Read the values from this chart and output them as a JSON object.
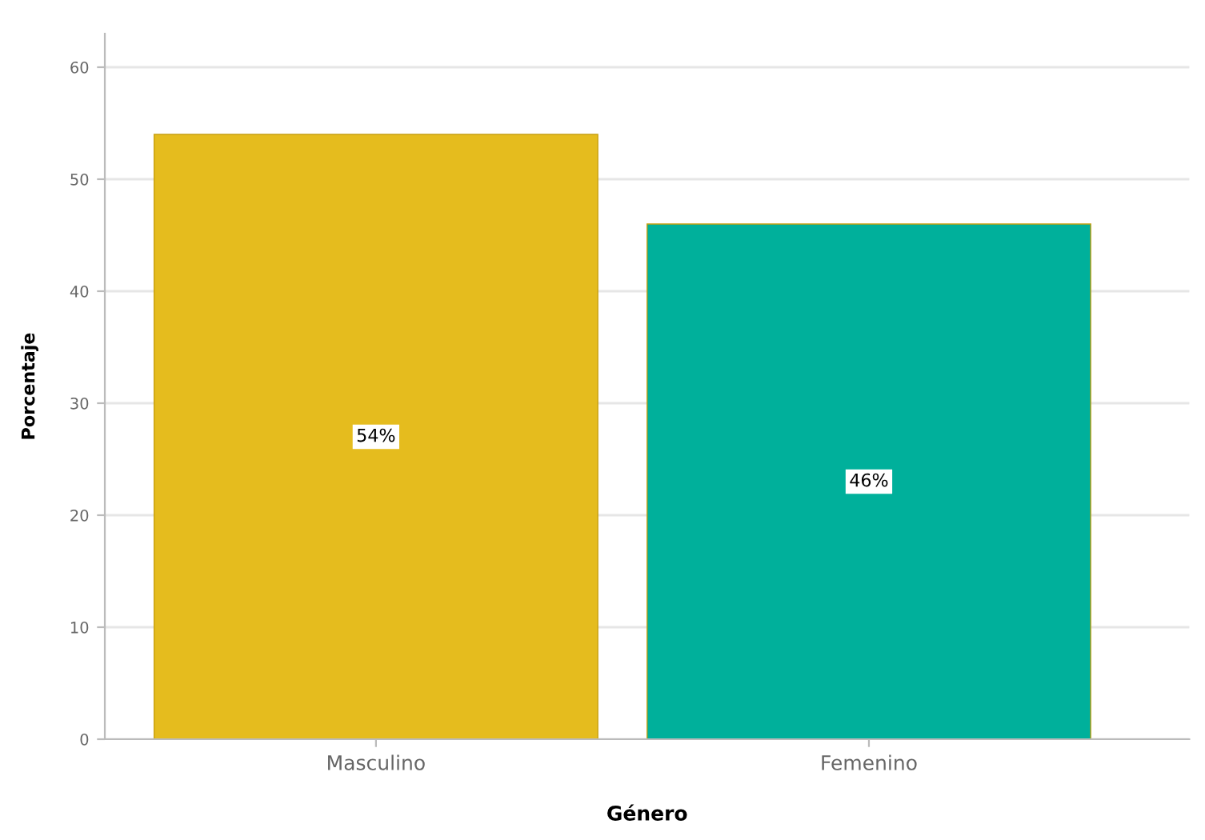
{
  "chart_data": {
    "type": "bar",
    "xlabel": "Género",
    "ylabel": "Porcentaje",
    "categories": [
      "Masculino",
      "Femenino"
    ],
    "values": [
      54,
      46
    ],
    "colors": [
      "#e5bc1e",
      "#00b09b"
    ],
    "value_labels": [
      "54%",
      "46%"
    ],
    "ylim": [
      0,
      63
    ],
    "yticks": [
      0,
      10,
      20,
      30,
      40,
      50,
      60
    ],
    "grid": "y"
  }
}
